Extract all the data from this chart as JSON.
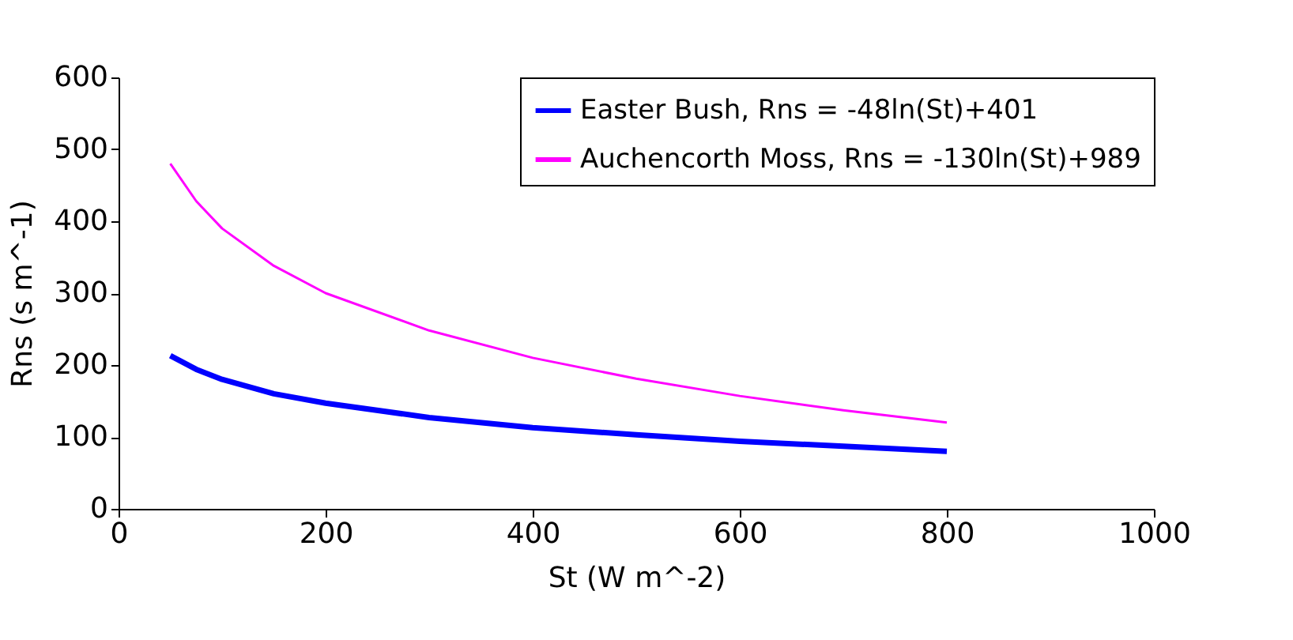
{
  "chart_data": {
    "type": "line",
    "xlabel": "St (W m^-2)",
    "ylabel": "Rns (s m^-1)",
    "xlim": [
      0,
      1000
    ],
    "xticks": [
      0,
      200,
      400,
      600,
      800,
      1000
    ],
    "ylim": [
      0,
      600
    ],
    "yticks": [
      0,
      100,
      200,
      300,
      400,
      500,
      600
    ],
    "grid": false,
    "legend": "top right",
    "marker": "none",
    "line_style": "solid",
    "series": [
      {
        "name": "Easter Bush, Rns = -48ln(St)+401",
        "color": "#0000ff",
        "x": [
          50,
          75,
          100,
          150,
          200,
          300,
          400,
          500,
          600,
          700,
          800
        ],
        "values": [
          213,
          194,
          180,
          160,
          147,
          127,
          113,
          103,
          94,
          87,
          80
        ]
      },
      {
        "name": "Auchencorth Moss, Rns = -130ln(St)+989",
        "color": "#ff00ff",
        "x": [
          50,
          75,
          100,
          150,
          200,
          300,
          400,
          500,
          600,
          700,
          800
        ],
        "values": [
          480,
          428,
          390,
          338,
          300,
          248,
          210,
          181,
          157,
          137,
          120
        ]
      }
    ]
  }
}
